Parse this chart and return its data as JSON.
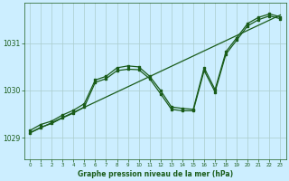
{
  "title": "Graphe pression niveau de la mer (hPa)",
  "bg_color": "#cceeff",
  "grid_color": "#aacccc",
  "line_color": "#1a5c1a",
  "xlim": [
    -0.5,
    23.5
  ],
  "ylim": [
    1028.55,
    1031.85
  ],
  "yticks": [
    1029,
    1030,
    1031
  ],
  "xticks": [
    0,
    1,
    2,
    3,
    4,
    5,
    6,
    7,
    8,
    9,
    10,
    11,
    12,
    13,
    14,
    15,
    16,
    17,
    18,
    19,
    20,
    21,
    22,
    23
  ],
  "trend_x": [
    0,
    23
  ],
  "trend_y": [
    1029.1,
    1031.6
  ],
  "wavy1_x": [
    0,
    1,
    2,
    3,
    4,
    5,
    6,
    7,
    8,
    9,
    10,
    11,
    12,
    13,
    14,
    15,
    16,
    17,
    18,
    19,
    20,
    21,
    22,
    23
  ],
  "wavy1_y": [
    1029.15,
    1029.28,
    1029.35,
    1029.48,
    1029.58,
    1029.72,
    1030.22,
    1030.3,
    1030.48,
    1030.52,
    1030.5,
    1030.3,
    1030.0,
    1029.65,
    1029.62,
    1029.6,
    1030.48,
    1030.02,
    1030.82,
    1031.12,
    1031.42,
    1031.55,
    1031.62,
    1031.56
  ],
  "wavy2_x": [
    0,
    1,
    2,
    3,
    4,
    5,
    6,
    7,
    8,
    9,
    10,
    11,
    12,
    13,
    14,
    15,
    16,
    17,
    18,
    19,
    20,
    21,
    22,
    23
  ],
  "wavy2_y": [
    1029.1,
    1029.22,
    1029.3,
    1029.42,
    1029.52,
    1029.65,
    1030.17,
    1030.25,
    1030.42,
    1030.45,
    1030.44,
    1030.25,
    1029.93,
    1029.6,
    1029.57,
    1029.57,
    1030.42,
    1029.97,
    1030.77,
    1031.07,
    1031.37,
    1031.5,
    1031.58,
    1031.52
  ]
}
